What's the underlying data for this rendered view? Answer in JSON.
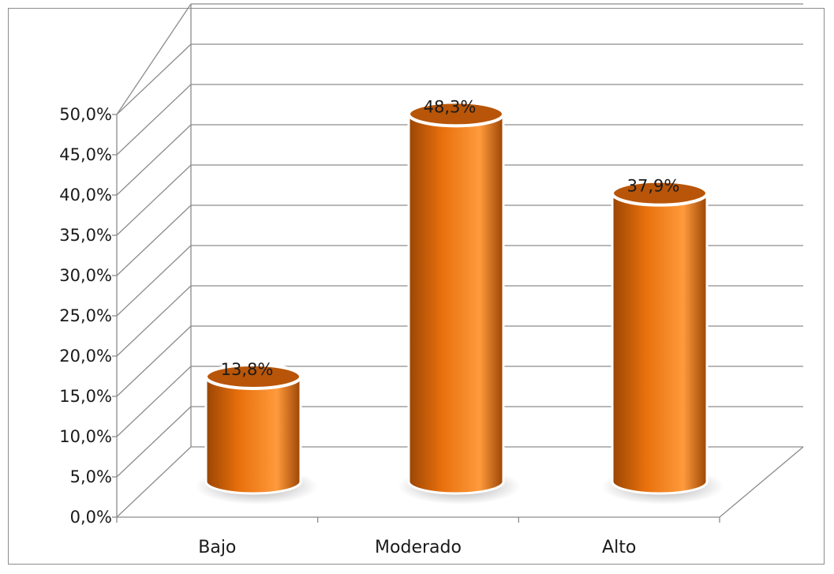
{
  "chart_data": {
    "type": "bar",
    "style": "3d-cylinder",
    "categories": [
      "Bajo",
      "Moderado",
      "Alto"
    ],
    "values": [
      13.8,
      48.3,
      37.9
    ],
    "data_labels": [
      "13,8%",
      "48,3%",
      "37,9%"
    ],
    "title": "",
    "xlabel": "",
    "ylabel": "",
    "ylim": [
      0,
      50
    ],
    "y_ticks": [
      0,
      5,
      10,
      15,
      20,
      25,
      30,
      35,
      40,
      45,
      50
    ],
    "y_tick_labels": [
      "0,0%",
      "5,0%",
      "10,0%",
      "15,0%",
      "20,0%",
      "25,0%",
      "30,0%",
      "35,0%",
      "40,0%",
      "45,0%",
      "50,0%"
    ],
    "grid": true,
    "legend": "none",
    "colors": {
      "bar": "#e8700c",
      "bar_dark": "#9a4504",
      "bar_light": "#ff9a3c",
      "top": "#b85508",
      "grid": "#8c8c8c"
    }
  }
}
